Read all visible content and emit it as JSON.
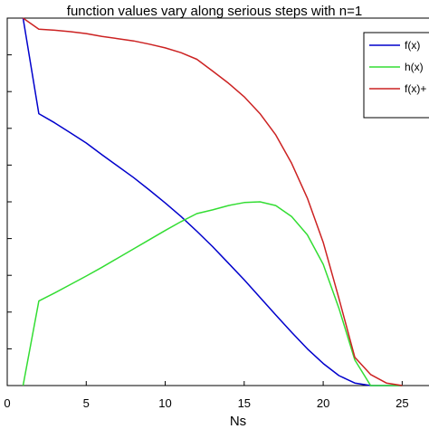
{
  "chart_data": {
    "type": "line",
    "title": "function values vary along serious steps with n=1",
    "xlabel": "Ns",
    "ylabel": "",
    "xlim": [
      0,
      27.5
    ],
    "ylim": [
      0,
      1.0
    ],
    "xticks": [
      0,
      5,
      10,
      15,
      20,
      25
    ],
    "xtick_labels": [
      "0",
      "5",
      "10",
      "15",
      "20",
      "25"
    ],
    "y_tick_count": 11,
    "grid": false,
    "legend_position": "top-right",
    "series": [
      {
        "name": "f(x)",
        "color": "#0000cc",
        "x": [
          1,
          2,
          3,
          4,
          5,
          6,
          7,
          8,
          9,
          10,
          11,
          12,
          13,
          14,
          15,
          16,
          17,
          18,
          19,
          20,
          21,
          22,
          23,
          24,
          25
        ],
        "y": [
          1.0,
          0.74,
          0.715,
          0.688,
          0.66,
          0.628,
          0.597,
          0.566,
          0.532,
          0.497,
          0.46,
          0.42,
          0.378,
          0.333,
          0.288,
          0.24,
          0.192,
          0.145,
          0.1,
          0.06,
          0.027,
          0.007,
          0.0,
          0.0,
          0.0
        ]
      },
      {
        "name": "h(x)",
        "color": "#33dd33",
        "x": [
          1,
          2,
          3,
          4,
          5,
          6,
          7,
          8,
          9,
          10,
          11,
          12,
          13,
          14,
          15,
          16,
          17,
          18,
          19,
          20,
          21,
          22,
          23,
          24,
          25
        ],
        "y": [
          0.0,
          0.23,
          0.252,
          0.275,
          0.298,
          0.322,
          0.347,
          0.372,
          0.397,
          0.422,
          0.446,
          0.468,
          0.478,
          0.49,
          0.498,
          0.5,
          0.49,
          0.46,
          0.41,
          0.33,
          0.21,
          0.07,
          0.0,
          0.0,
          0.0
        ]
      },
      {
        "name": "f(x)+",
        "color": "#cc2222",
        "x": [
          1,
          2,
          3,
          4,
          5,
          6,
          7,
          8,
          9,
          10,
          11,
          12,
          13,
          14,
          15,
          16,
          17,
          18,
          19,
          20,
          21,
          22,
          23,
          24,
          25
        ],
        "y": [
          1.0,
          0.97,
          0.967,
          0.963,
          0.958,
          0.95,
          0.944,
          0.938,
          0.929,
          0.919,
          0.906,
          0.888,
          0.856,
          0.823,
          0.786,
          0.74,
          0.682,
          0.605,
          0.51,
          0.39,
          0.237,
          0.077,
          0.03,
          0.007,
          0.0
        ]
      }
    ]
  }
}
